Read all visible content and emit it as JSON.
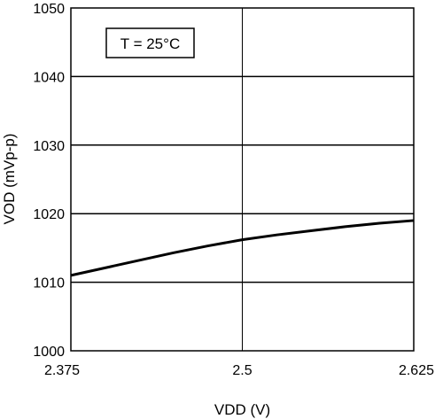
{
  "chart_data": {
    "type": "line",
    "title": "",
    "xlabel": "VDD (V)",
    "ylabel": "VOD (mVp-p)",
    "xlim": [
      2.375,
      2.625
    ],
    "ylim": [
      1000,
      1050
    ],
    "x_ticks": [
      2.375,
      2.5,
      2.625
    ],
    "x_tick_labels": [
      "2.375",
      "2.5",
      "2.625"
    ],
    "y_ticks": [
      1000,
      1010,
      1020,
      1030,
      1040,
      1050
    ],
    "y_tick_labels": [
      "1000",
      "1010",
      "1020",
      "1030",
      "1040",
      "1050"
    ],
    "grid": true,
    "legend": "none",
    "annotation": "T = 25°C",
    "series": [
      {
        "x": [
          2.375,
          2.4,
          2.425,
          2.45,
          2.475,
          2.5,
          2.525,
          2.55,
          2.575,
          2.6,
          2.625
        ],
        "values": [
          1011,
          1012.1,
          1013.2,
          1014.3,
          1015.3,
          1016.2,
          1016.9,
          1017.5,
          1018.1,
          1018.6,
          1019.0
        ]
      }
    ],
    "colors": {
      "line": "#000000",
      "grid": "#000000",
      "frame": "#000000",
      "background": "#ffffff"
    }
  }
}
